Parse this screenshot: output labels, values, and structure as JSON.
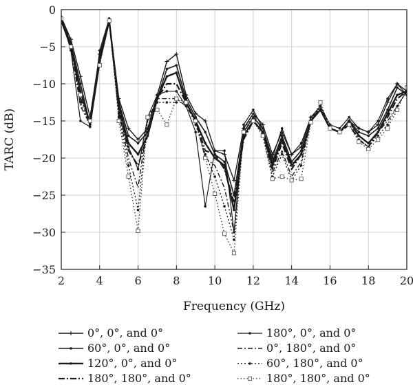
{
  "chart_data": {
    "type": "line",
    "xlabel": "Frequency (GHz)",
    "ylabel": "TARC (dB)",
    "xlim": [
      2,
      20
    ],
    "ylim": [
      -35,
      0
    ],
    "xticks": [
      2,
      4,
      6,
      8,
      10,
      12,
      14,
      16,
      18,
      20
    ],
    "yticks": [
      0,
      -5,
      -10,
      -15,
      -20,
      -25,
      -30,
      -35
    ],
    "ytick_labels": [
      "0",
      "−5",
      "−10",
      "−15",
      "−20",
      "−25",
      "−30",
      "−35"
    ],
    "grid": true,
    "legend_position": "bottom",
    "x": [
      2,
      2.5,
      3,
      3.5,
      4,
      4.5,
      5,
      5.5,
      6,
      6.5,
      7,
      7.5,
      8,
      8.5,
      9,
      9.5,
      10,
      10.5,
      11,
      11.5,
      12,
      12.5,
      13,
      13.5,
      14,
      14.5,
      15,
      15.5,
      16,
      16.5,
      17,
      17.5,
      18,
      18.5,
      19,
      19.5,
      20
    ],
    "series": [
      {
        "name": "0°, 0°, and 0°",
        "style": "solid-plus",
        "values": [
          -1,
          -4,
          -9,
          -14.5,
          -6,
          -1.5,
          -12,
          -16,
          -17.5,
          -16,
          -11.5,
          -7,
          -6,
          -11.5,
          -14,
          -15,
          -19,
          -19.5,
          -23,
          -16,
          -14,
          -15.5,
          -19.5,
          -16.5,
          -19.5,
          -18.5,
          -14.5,
          -13.5,
          -16,
          -16.5,
          -15,
          -16,
          -16.5,
          -15.5,
          -12.5,
          -10,
          -11
        ]
      },
      {
        "name": "60°, 0°, and 0°",
        "style": "solid",
        "values": [
          -1.3,
          -4.5,
          -10,
          -15.5,
          -6.5,
          -1.5,
          -12.5,
          -17,
          -18,
          -16.5,
          -12,
          -8,
          -7.5,
          -12,
          -14.5,
          -16.5,
          -19.5,
          -20.5,
          -25,
          -16.5,
          -14.5,
          -16,
          -20.5,
          -17,
          -20.5,
          -19,
          -15,
          -13.5,
          -16,
          -16.5,
          -15,
          -16.5,
          -17,
          -16,
          -13.5,
          -10.5,
          -11.5
        ]
      },
      {
        "name": "120°, 0°, and 0°",
        "style": "solid-bold",
        "values": [
          -1.5,
          -5,
          -11,
          -15.5,
          -7,
          -1.5,
          -13,
          -18,
          -19.5,
          -17,
          -12,
          -9,
          -8.5,
          -12.5,
          -15,
          -18,
          -20,
          -21,
          -27,
          -17,
          -15,
          -16.5,
          -21,
          -17.5,
          -21,
          -19.5,
          -15,
          -13.5,
          -16,
          -16.5,
          -15,
          -17,
          -18,
          -16.5,
          -14,
          -11.5,
          -11
        ]
      },
      {
        "name": "180°, 180°, and 0°",
        "style": "dash-dot-bold",
        "values": [
          -1.2,
          -4.5,
          -12,
          -15,
          -7,
          -1.5,
          -13.5,
          -19,
          -21,
          -17,
          -12,
          -10,
          -10,
          -12.5,
          -15,
          -19,
          -19.5,
          -21.5,
          -26,
          -17.5,
          -15,
          -16.5,
          -21.5,
          -18,
          -21.5,
          -19.5,
          -15,
          -13.5,
          -16,
          -16.5,
          -15.5,
          -17.5,
          -18.5,
          -16.5,
          -14.5,
          -12,
          -11
        ]
      },
      {
        "name": "180°, 0°, and 0°",
        "style": "solid-dot",
        "values": [
          -1,
          -5.5,
          -15,
          -15.8,
          -5.5,
          -1.2,
          -14,
          -18.5,
          -21.5,
          -14.5,
          -11.5,
          -11,
          -11,
          -13,
          -16.5,
          -26.5,
          -19,
          -19,
          -30,
          -15.5,
          -13.5,
          -16,
          -20,
          -16,
          -19.5,
          -18,
          -14.5,
          -13,
          -15.5,
          -16,
          -14.5,
          -16,
          -16.5,
          -15,
          -12,
          -10,
          -11.5
        ]
      },
      {
        "name": "0°, 180°, and 0°",
        "style": "dash-dot",
        "values": [
          -1,
          -5,
          -13,
          -15.5,
          -6,
          -1.5,
          -14,
          -20,
          -24,
          -15,
          -12,
          -12,
          -12,
          -13,
          -15,
          -20,
          -21,
          -24,
          -30,
          -16,
          -14,
          -16.5,
          -22,
          -19,
          -22.5,
          -20.5,
          -15,
          -13,
          -16,
          -16.5,
          -15,
          -17,
          -18,
          -16.5,
          -15,
          -13,
          -11
        ]
      },
      {
        "name": "60°, 180°, and 0°",
        "style": "dotted",
        "values": [
          -1,
          -5,
          -12.5,
          -15.5,
          -6.5,
          -1.5,
          -14.5,
          -21,
          -27,
          -14.5,
          -12.5,
          -12.5,
          -12.5,
          -12.5,
          -15.5,
          -19.5,
          -22.5,
          -26.5,
          -31,
          -16,
          -14.5,
          -17,
          -22.5,
          -19.5,
          -23,
          -21,
          -15,
          -13,
          -16,
          -16.5,
          -15,
          -17.5,
          -18.5,
          -17,
          -15.5,
          -13,
          -11
        ]
      },
      {
        "name": "180°, 180°, and 0°",
        "style": "dotted-square",
        "values": [
          -1.2,
          -5,
          -11.5,
          -15,
          -7.5,
          -1.5,
          -15,
          -22.5,
          -29.8,
          -14.5,
          -13.5,
          -15.5,
          -12,
          -12.5,
          -15,
          -20,
          -24.8,
          -30.2,
          -32.8,
          -16.5,
          -15,
          -17,
          -22.8,
          -22.5,
          -23,
          -22.8,
          -15.2,
          -12.5,
          -16,
          -16.5,
          -15.5,
          -17.8,
          -18.8,
          -17.5,
          -16,
          -13.5,
          -10.5
        ]
      }
    ]
  }
}
